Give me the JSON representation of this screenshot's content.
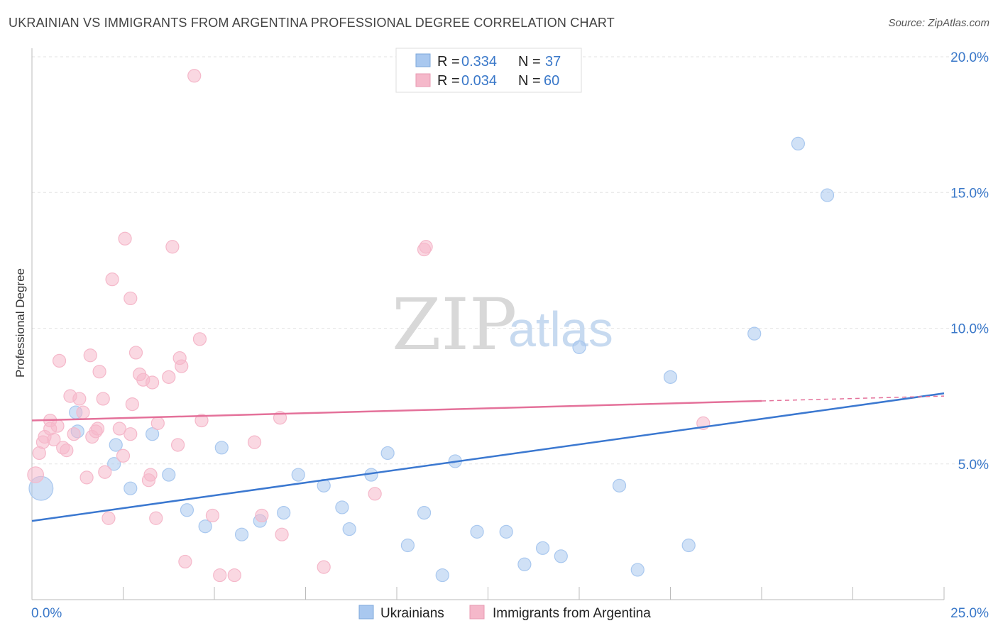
{
  "title": "UKRAINIAN VS IMMIGRANTS FROM ARGENTINA PROFESSIONAL DEGREE CORRELATION CHART",
  "source": "Source: ZipAtlas.com",
  "watermark": {
    "zip": "ZIP",
    "atlas": "atlas"
  },
  "legend_top": {
    "r_label": "R =",
    "n_label": "N =",
    "rows": [
      {
        "r": "0.334",
        "n": "37",
        "color": "#a9c8ef"
      },
      {
        "r": "0.034",
        "n": "60",
        "color": "#f5b8ca"
      }
    ]
  },
  "legend_bottom": [
    {
      "label": "Ukrainians",
      "color": "#a9c8ef"
    },
    {
      "label": "Immigrants from Argentina",
      "color": "#f5b8ca"
    }
  ],
  "chart_data": {
    "type": "scatter",
    "title": "UKRAINIAN VS IMMIGRANTS FROM ARGENTINA PROFESSIONAL DEGREE CORRELATION CHART",
    "xlabel": "",
    "ylabel": "Professional Degree",
    "xlim": [
      0,
      25
    ],
    "ylim": [
      0,
      20
    ],
    "x_tick_labels": [
      "0.0%",
      "25.0%"
    ],
    "y_ticks": [
      5,
      10,
      15,
      20
    ],
    "y_tick_labels": [
      "5.0%",
      "10.0%",
      "15.0%",
      "20.0%"
    ],
    "grid": true,
    "legend_placement": "top-center",
    "series": [
      {
        "name": "Ukrainians",
        "color": "#3b78d0",
        "fill": "#a9c8ef",
        "r": 0.334,
        "n": 37,
        "trend": {
          "x": [
            0,
            25
          ],
          "y": [
            2.9,
            7.6
          ],
          "dashed_from": null
        },
        "points": [
          [
            0.25,
            4.1,
            3
          ],
          [
            1.2,
            6.9,
            1
          ],
          [
            1.25,
            6.2,
            1
          ],
          [
            2.3,
            5.7,
            1
          ],
          [
            2.25,
            5.0,
            1
          ],
          [
            2.7,
            4.1,
            1
          ],
          [
            3.3,
            6.1,
            1
          ],
          [
            3.75,
            4.6,
            1
          ],
          [
            4.25,
            3.3,
            1
          ],
          [
            4.75,
            2.7,
            1
          ],
          [
            5.2,
            5.6,
            1
          ],
          [
            5.75,
            2.4,
            1
          ],
          [
            6.25,
            2.9,
            1
          ],
          [
            6.9,
            3.2,
            1
          ],
          [
            7.3,
            4.6,
            1
          ],
          [
            8.0,
            4.2,
            1
          ],
          [
            8.5,
            3.4,
            1
          ],
          [
            8.7,
            2.6,
            1
          ],
          [
            9.3,
            4.6,
            1
          ],
          [
            9.75,
            5.4,
            1
          ],
          [
            10.3,
            2.0,
            1
          ],
          [
            10.75,
            3.2,
            1
          ],
          [
            11.25,
            0.9,
            1
          ],
          [
            11.6,
            5.1,
            1
          ],
          [
            12.2,
            2.5,
            1
          ],
          [
            13.0,
            2.5,
            1
          ],
          [
            13.5,
            1.3,
            1
          ],
          [
            14.0,
            1.9,
            1
          ],
          [
            14.5,
            1.6,
            1
          ],
          [
            15.0,
            9.3,
            1
          ],
          [
            16.1,
            4.2,
            1
          ],
          [
            16.6,
            1.1,
            1
          ],
          [
            17.5,
            8.2,
            1
          ],
          [
            18.0,
            2.0,
            1
          ],
          [
            19.8,
            9.8,
            1
          ],
          [
            21.0,
            16.8,
            1
          ],
          [
            21.8,
            14.9,
            1
          ]
        ]
      },
      {
        "name": "Immigrants from Argentina",
        "color": "#e4719a",
        "fill": "#f5b8ca",
        "r": 0.034,
        "n": 60,
        "trend": {
          "x": [
            0,
            25
          ],
          "y": [
            6.6,
            7.5
          ],
          "dashed_from": 20
        },
        "points": [
          [
            0.1,
            4.6,
            2
          ],
          [
            0.2,
            5.4,
            1
          ],
          [
            0.3,
            5.8,
            1
          ],
          [
            0.35,
            6.0,
            1
          ],
          [
            0.5,
            6.3,
            1
          ],
          [
            0.5,
            6.6,
            1
          ],
          [
            0.6,
            5.9,
            1
          ],
          [
            0.7,
            6.4,
            1
          ],
          [
            0.75,
            8.8,
            1
          ],
          [
            0.85,
            5.6,
            1
          ],
          [
            0.95,
            5.5,
            1
          ],
          [
            1.05,
            7.5,
            1
          ],
          [
            1.15,
            6.1,
            1
          ],
          [
            1.3,
            7.4,
            1
          ],
          [
            1.4,
            6.9,
            1
          ],
          [
            1.5,
            4.5,
            1
          ],
          [
            1.6,
            9.0,
            1
          ],
          [
            1.65,
            6.0,
            1
          ],
          [
            1.75,
            6.2,
            1
          ],
          [
            1.8,
            6.3,
            1
          ],
          [
            1.85,
            8.4,
            1
          ],
          [
            1.95,
            7.4,
            1
          ],
          [
            2.0,
            4.7,
            1
          ],
          [
            2.1,
            3.0,
            1
          ],
          [
            2.2,
            11.8,
            1
          ],
          [
            2.4,
            6.3,
            1
          ],
          [
            2.5,
            5.3,
            1
          ],
          [
            2.55,
            13.3,
            1
          ],
          [
            2.7,
            6.1,
            1
          ],
          [
            2.7,
            11.1,
            1
          ],
          [
            2.75,
            7.2,
            1
          ],
          [
            2.85,
            9.1,
            1
          ],
          [
            2.95,
            8.3,
            1
          ],
          [
            3.05,
            8.1,
            1
          ],
          [
            3.2,
            4.4,
            1
          ],
          [
            3.25,
            4.6,
            1
          ],
          [
            3.3,
            8.0,
            1
          ],
          [
            3.4,
            3.0,
            1
          ],
          [
            3.45,
            6.5,
            1
          ],
          [
            3.75,
            8.2,
            1
          ],
          [
            3.85,
            13.0,
            1
          ],
          [
            4.0,
            5.7,
            1
          ],
          [
            4.05,
            8.9,
            1
          ],
          [
            4.1,
            8.6,
            1
          ],
          [
            4.2,
            1.4,
            1
          ],
          [
            4.45,
            19.3,
            1
          ],
          [
            4.6,
            9.6,
            1
          ],
          [
            4.65,
            6.6,
            1
          ],
          [
            4.95,
            3.1,
            1
          ],
          [
            5.15,
            0.9,
            1
          ],
          [
            5.55,
            0.9,
            1
          ],
          [
            6.1,
            5.8,
            1
          ],
          [
            6.3,
            3.1,
            1
          ],
          [
            6.8,
            6.7,
            1
          ],
          [
            6.85,
            2.4,
            1
          ],
          [
            8.0,
            1.2,
            1
          ],
          [
            9.4,
            3.9,
            1
          ],
          [
            10.75,
            12.9,
            1
          ],
          [
            10.8,
            13.0,
            1
          ],
          [
            18.4,
            6.5,
            1
          ]
        ]
      }
    ]
  }
}
